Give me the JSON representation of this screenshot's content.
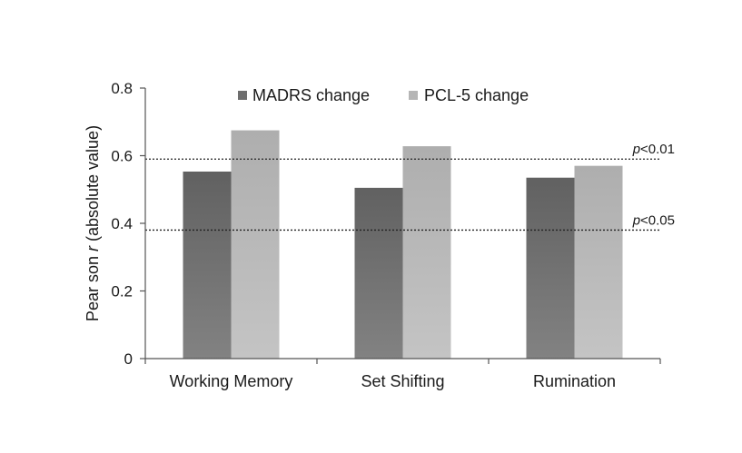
{
  "chart_data": {
    "type": "bar",
    "categories": [
      "Working Memory",
      "Set Shifting",
      "Rumination"
    ],
    "series": [
      {
        "name": "MADRS change",
        "values": [
          0.553,
          0.505,
          0.535
        ]
      },
      {
        "name": "PCL-5 change",
        "values": [
          0.675,
          0.628,
          0.57
        ]
      }
    ],
    "title": "",
    "xlabel": "",
    "ylabel_prefix": "Pear son ",
    "ylabel_italic": "r",
    "ylabel_suffix": " (absolute value)",
    "ylim": [
      0,
      0.8
    ],
    "yticks": [
      "0",
      "0.2",
      "0.4",
      "0.6",
      "0.8"
    ],
    "reference_lines": [
      {
        "value": 0.59,
        "label_italic": "p",
        "label_rest": "<0.01"
      },
      {
        "value": 0.38,
        "label_italic": "p",
        "label_rest": "<0.05"
      }
    ],
    "legend_position": "top-center",
    "grid": false,
    "colors": [
      "#6e6e6e",
      "#b5b5b5"
    ]
  }
}
